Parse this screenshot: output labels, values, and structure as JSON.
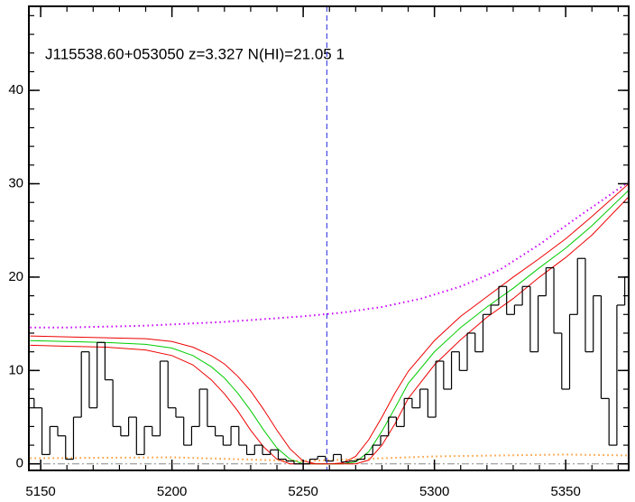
{
  "chart_data": {
    "type": "step",
    "title": "J115538.60+053050 z=3.327 N(HI)=21.05 1",
    "xlim": [
      5145.5,
      5374
    ],
    "ylim": [
      -0.7,
      49
    ],
    "xticks": [
      5150,
      5200,
      5250,
      5300,
      5350
    ],
    "yticks": [
      0,
      10,
      20,
      30,
      40
    ],
    "color": "#000000",
    "x": [
      5146,
      5149,
      5152,
      5155,
      5158,
      5161,
      5164,
      5167,
      5170,
      5173,
      5176,
      5179,
      5182,
      5185,
      5188,
      5191,
      5194,
      5197,
      5200,
      5203,
      5206,
      5209,
      5212,
      5215,
      5218,
      5221,
      5224,
      5227,
      5230,
      5233,
      5236,
      5239,
      5242,
      5245,
      5248,
      5251,
      5254,
      5257,
      5260,
      5263,
      5266,
      5269,
      5272,
      5275,
      5278,
      5281,
      5284,
      5287,
      5290,
      5293,
      5296,
      5299,
      5302,
      5305,
      5308,
      5311,
      5314,
      5317,
      5320,
      5323,
      5326,
      5329,
      5332,
      5335,
      5338,
      5341,
      5344,
      5347,
      5350,
      5353,
      5356,
      5359,
      5362,
      5365,
      5368,
      5371,
      5374
    ],
    "values": [
      7,
      6,
      1,
      4,
      3,
      0.5,
      5,
      12,
      6,
      13,
      9,
      4,
      3,
      5,
      1,
      4,
      3,
      11,
      6,
      5,
      2,
      4,
      8,
      4,
      3,
      2,
      4,
      2,
      1,
      2,
      1,
      1.5,
      0.5,
      0.3,
      0,
      0,
      0.5,
      0.8,
      0.3,
      1,
      0.2,
      0.3,
      0.5,
      1,
      2,
      3,
      5,
      4,
      7,
      6,
      8,
      5,
      11,
      8,
      12,
      10,
      14,
      12,
      16,
      17,
      19,
      16,
      17,
      19,
      12,
      18,
      21,
      14,
      8,
      16,
      22,
      12,
      18,
      7,
      2,
      17,
      20
    ],
    "series": [
      {
        "color": "#ee0000",
        "style": "solid",
        "x": [
          5146,
          5160,
          5175,
          5190,
          5200,
          5208,
          5215,
          5220,
          5225,
          5230,
          5235,
          5240,
          5245,
          5250,
          5255,
          5260,
          5265,
          5270,
          5275,
          5280,
          5285,
          5290,
          5300,
          5310,
          5320,
          5330,
          5340,
          5350,
          5360,
          5374
        ],
        "values": [
          13.7,
          13.6,
          13.5,
          13.4,
          13.1,
          12.5,
          11.6,
          10.7,
          9.4,
          7.8,
          5.8,
          3.6,
          1.6,
          0.3,
          0,
          0,
          0.1,
          0.8,
          2.6,
          5.0,
          7.6,
          9.9,
          13.2,
          15.8,
          17.9,
          20.0,
          22.0,
          24.1,
          26.5,
          30.0
        ]
      },
      {
        "color": "#00cc00",
        "style": "solid",
        "x": [
          5146,
          5160,
          5175,
          5190,
          5200,
          5208,
          5215,
          5220,
          5225,
          5230,
          5235,
          5240,
          5245,
          5250,
          5255,
          5260,
          5265,
          5270,
          5275,
          5280,
          5285,
          5290,
          5300,
          5310,
          5320,
          5330,
          5340,
          5350,
          5360,
          5374
        ],
        "values": [
          13.2,
          13.1,
          13.0,
          12.8,
          12.4,
          11.6,
          10.4,
          9.2,
          7.6,
          5.7,
          3.6,
          1.7,
          0.5,
          0,
          0,
          0,
          0,
          0.2,
          1.3,
          3.5,
          6.0,
          8.6,
          12.0,
          14.6,
          16.8,
          18.8,
          21.0,
          23.1,
          25.5,
          29.3
        ]
      },
      {
        "color": "#ee0000",
        "style": "solid",
        "x": [
          5146,
          5160,
          5175,
          5190,
          5200,
          5208,
          5215,
          5220,
          5225,
          5230,
          5235,
          5240,
          5245,
          5250,
          5255,
          5260,
          5265,
          5270,
          5275,
          5280,
          5285,
          5290,
          5300,
          5310,
          5320,
          5330,
          5340,
          5350,
          5360,
          5374
        ],
        "values": [
          12.7,
          12.6,
          12.5,
          12.2,
          11.6,
          10.6,
          9.0,
          7.5,
          5.7,
          3.6,
          1.8,
          0.5,
          0,
          0,
          0,
          0,
          0,
          0,
          0.4,
          2.0,
          4.3,
          7.0,
          10.6,
          13.3,
          15.7,
          17.7,
          20.0,
          22.1,
          24.5,
          28.6
        ]
      },
      {
        "color": "#cc00ff",
        "style": "dotted",
        "x": [
          5146,
          5160,
          5175,
          5190,
          5205,
          5220,
          5235,
          5250,
          5265,
          5280,
          5295,
          5310,
          5325,
          5340,
          5355,
          5374
        ],
        "values": [
          14.6,
          14.6,
          14.7,
          14.8,
          15.0,
          15.2,
          15.5,
          15.8,
          16.2,
          16.8,
          17.7,
          19.0,
          20.8,
          23.5,
          26.5,
          30.2
        ]
      },
      {
        "color": "#ff9933",
        "style": "dotted",
        "x": [
          5146,
          5200,
          5250,
          5300,
          5350,
          5374
        ],
        "values": [
          0.6,
          0.7,
          0.3,
          0.8,
          1.0,
          0.9
        ]
      }
    ],
    "zero_line": 0,
    "vline": 5259
  }
}
